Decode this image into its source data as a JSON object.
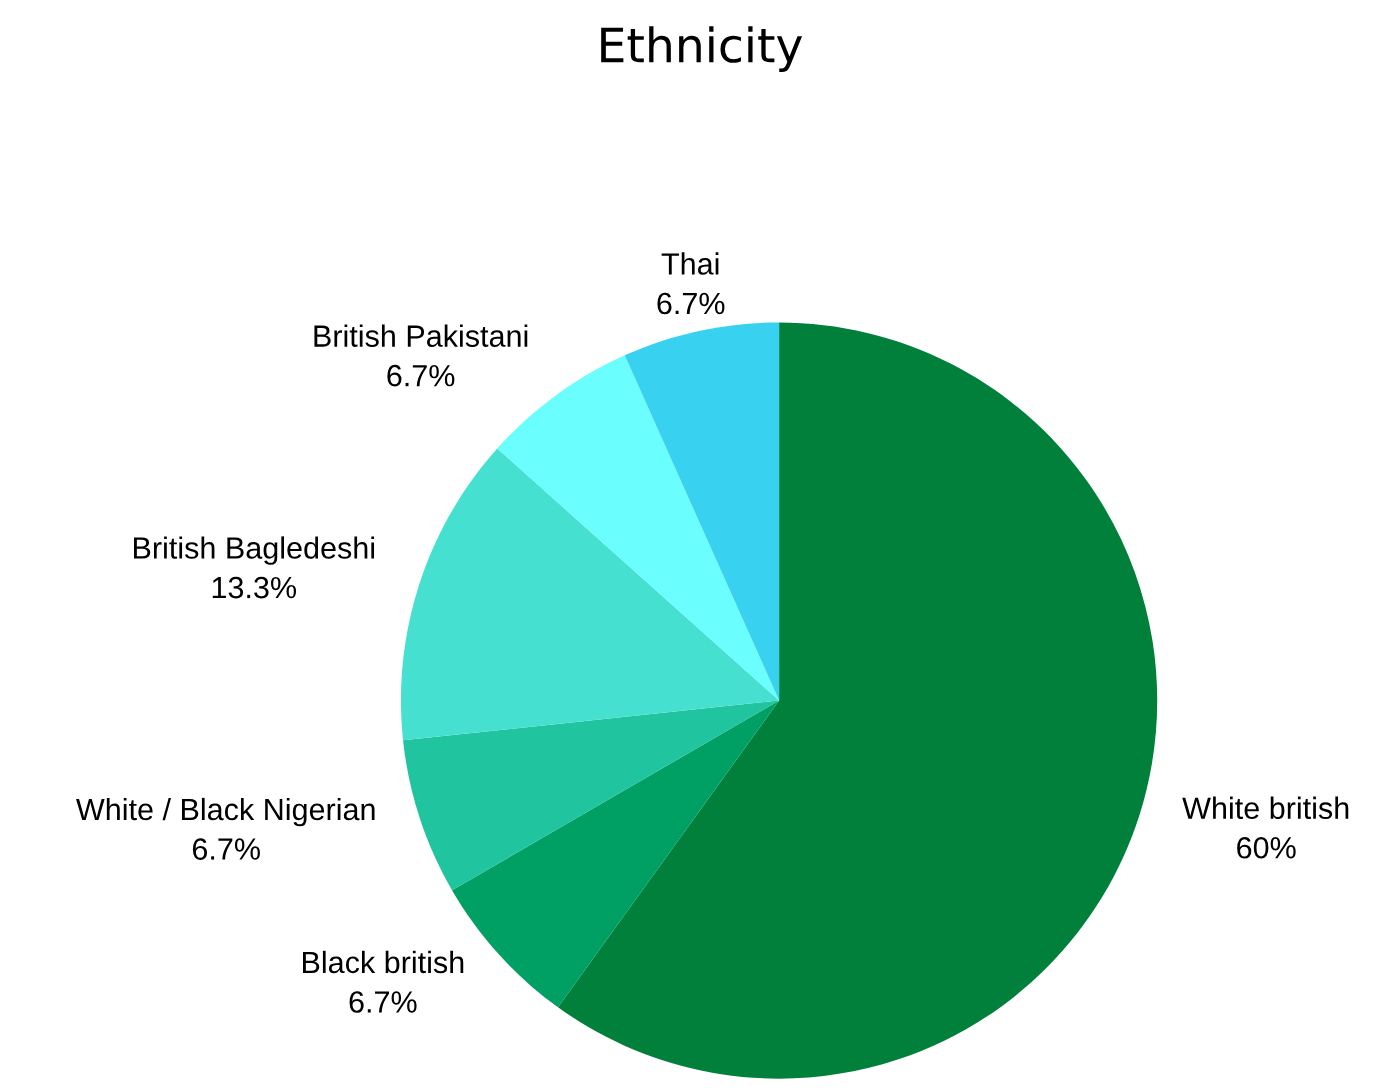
{
  "chart_data": {
    "type": "pie",
    "title": "Ethnicity",
    "categories": [
      "White british",
      "Black british",
      "White / Black Nigerian",
      "British Bagledeshi",
      "British Pakistani",
      "Thai"
    ],
    "values": [
      60,
      6.7,
      6.7,
      13.3,
      6.7,
      6.7
    ],
    "value_labels": [
      "60%",
      "6.7%",
      "6.7%",
      "13.3%",
      "6.7%",
      "6.7%"
    ],
    "colors": [
      "#00803a",
      "#00a065",
      "#20c49e",
      "#45e0d0",
      "#6bfefe",
      "#38d2f0"
    ],
    "legend": false
  }
}
